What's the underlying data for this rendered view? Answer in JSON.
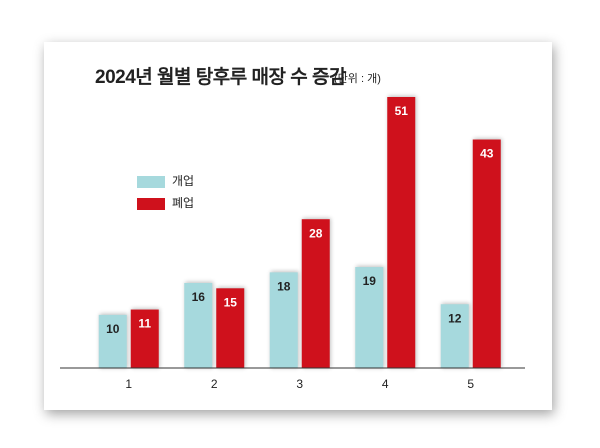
{
  "chart_data": {
    "type": "bar",
    "title": "2024년 월별 탕후루 매장 수 증감",
    "subtitle": "(단위 : 개)",
    "categories": [
      "1",
      "2",
      "3",
      "4",
      "5"
    ],
    "series": [
      {
        "name": "개업",
        "color": "#a6d9dd",
        "values": [
          10,
          16,
          18,
          19,
          12
        ]
      },
      {
        "name": "폐업",
        "color": "#cf111c",
        "values": [
          11,
          15,
          28,
          51,
          43
        ]
      }
    ],
    "legend": "upper left"
  }
}
